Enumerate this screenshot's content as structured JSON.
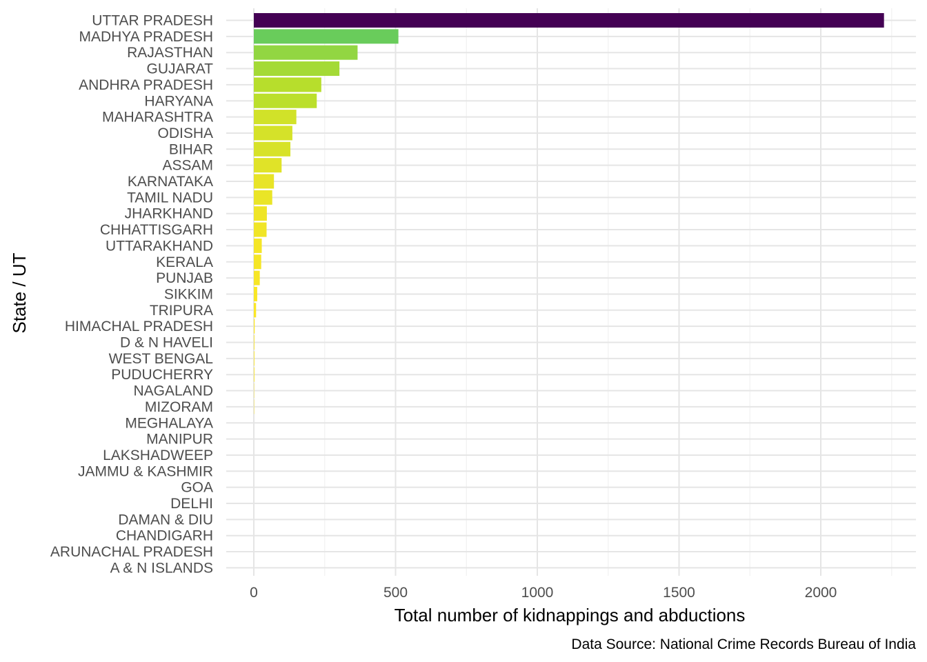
{
  "chart_data": {
    "type": "bar",
    "orientation": "horizontal",
    "title": "",
    "xlabel": "Total number of kidnappings and abductions",
    "ylabel": "State / UT",
    "caption": "Data Source: National Crime Records Bureau of India",
    "xlim": [
      -110,
      2310
    ],
    "xticks": [
      0,
      500,
      1000,
      1500,
      2000
    ],
    "grid": true,
    "legend": "none",
    "color_scale": "viridis (reversed: high = dark purple, low = yellow)",
    "categories": [
      "UTTAR PRADESH",
      "MADHYA PRADESH",
      "RAJASTHAN",
      "GUJARAT",
      "ANDHRA PRADESH",
      "HARYANA",
      "MAHARASHTRA",
      "ODISHA",
      "BIHAR",
      "ASSAM",
      "KARNATAKA",
      "TAMIL NADU",
      "JHARKHAND",
      "CHHATTISGARH",
      "UTTARAKHAND",
      "KERALA",
      "PUNJAB",
      "SIKKIM",
      "TRIPURA",
      "HIMACHAL PRADESH",
      "D & N HAVELI",
      "WEST BENGAL",
      "PUDUCHERRY",
      "NAGALAND",
      "MIZORAM",
      "MEGHALAYA",
      "MANIPUR",
      "LAKSHADWEEP",
      "JAMMU & KASHMIR",
      "GOA",
      "DELHI",
      "DAMAN & DIU",
      "CHANDIGARH",
      "ARUNACHAL PRADESH",
      "A & N ISLANDS"
    ],
    "values": [
      2223,
      510,
      366,
      302,
      238,
      222,
      150,
      136,
      129,
      98,
      71,
      65,
      46,
      45,
      28,
      26,
      21,
      12,
      8,
      3,
      2,
      2,
      2,
      1,
      1,
      0,
      0,
      0,
      0,
      0,
      0,
      0,
      0,
      0,
      0
    ]
  }
}
